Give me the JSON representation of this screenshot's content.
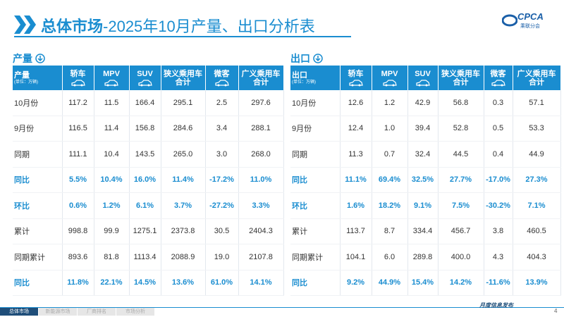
{
  "header": {
    "title_bold": "总体市场",
    "title_rest": "-2025年10月产量、出口分析表"
  },
  "logo": {
    "name": "CPCA",
    "sub": "乘联分会"
  },
  "tables": [
    {
      "label": "产量",
      "unit": "(单位：万辆)",
      "columns": [
        [
          "产量"
        ],
        [
          "轿车"
        ],
        [
          "MPV"
        ],
        [
          "SUV"
        ],
        [
          "狭义乘用车",
          "合计"
        ],
        [
          "微客"
        ],
        [
          "广义乘用车",
          "合计"
        ]
      ],
      "rows": [
        {
          "label": "10月份",
          "cells": [
            "117.2",
            "11.5",
            "166.4",
            "295.1",
            "2.5",
            "297.6"
          ]
        },
        {
          "label": "9月份",
          "cells": [
            "116.5",
            "11.4",
            "156.8",
            "284.6",
            "3.4",
            "288.1"
          ]
        },
        {
          "label": "同期",
          "cells": [
            "111.1",
            "10.4",
            "143.5",
            "265.0",
            "3.0",
            "268.0"
          ]
        },
        {
          "label": "同比",
          "emphasis": true,
          "cells": [
            "5.5%",
            "10.4%",
            "16.0%",
            "11.4%",
            "-17.2%",
            "11.0%"
          ]
        },
        {
          "label": "环比",
          "emphasis": true,
          "cells": [
            "0.6%",
            "1.2%",
            "6.1%",
            "3.7%",
            "-27.2%",
            "3.3%"
          ]
        },
        {
          "label": "累计",
          "cells": [
            "998.8",
            "99.9",
            "1275.1",
            "2373.8",
            "30.5",
            "2404.3"
          ]
        },
        {
          "label": "同期累计",
          "cells": [
            "893.6",
            "81.8",
            "1113.4",
            "2088.9",
            "19.0",
            "2107.8"
          ]
        },
        {
          "label": "同比",
          "emphasis": true,
          "cells": [
            "11.8%",
            "22.1%",
            "14.5%",
            "13.6%",
            "61.0%",
            "14.1%"
          ]
        }
      ]
    },
    {
      "label": "出口",
      "unit": "(单位：万辆)",
      "columns": [
        [
          "出口"
        ],
        [
          "轿车"
        ],
        [
          "MPV"
        ],
        [
          "SUV"
        ],
        [
          "狭义乘用车",
          "合计"
        ],
        [
          "微客"
        ],
        [
          "广义乘用车",
          "合计"
        ]
      ],
      "rows": [
        {
          "label": "10月份",
          "cells": [
            "12.6",
            "1.2",
            "42.9",
            "56.8",
            "0.3",
            "57.1"
          ]
        },
        {
          "label": "9月份",
          "cells": [
            "12.4",
            "1.0",
            "39.4",
            "52.8",
            "0.5",
            "53.3"
          ]
        },
        {
          "label": "同期",
          "cells": [
            "11.3",
            "0.7",
            "32.4",
            "44.5",
            "0.4",
            "44.9"
          ]
        },
        {
          "label": "同比",
          "emphasis": true,
          "cells": [
            "11.1%",
            "69.4%",
            "32.5%",
            "27.7%",
            "-17.0%",
            "27.3%"
          ]
        },
        {
          "label": "环比",
          "emphasis": true,
          "cells": [
            "1.6%",
            "18.2%",
            "9.1%",
            "7.5%",
            "-30.2%",
            "7.1%"
          ]
        },
        {
          "label": "累计",
          "cells": [
            "113.7",
            "8.7",
            "334.4",
            "456.7",
            "3.8",
            "460.5"
          ]
        },
        {
          "label": "同期累计",
          "cells": [
            "104.1",
            "6.0",
            "289.8",
            "400.0",
            "4.3",
            "404.3"
          ]
        },
        {
          "label": "同比",
          "emphasis": true,
          "cells": [
            "9.2%",
            "44.9%",
            "15.4%",
            "14.2%",
            "-11.6%",
            "13.9%"
          ]
        }
      ]
    }
  ],
  "footer": {
    "tabs": [
      "总体市场",
      "新能源市场",
      "厂商排名",
      "市场分析"
    ],
    "slogan": "月度信息发布",
    "page": "4"
  }
}
